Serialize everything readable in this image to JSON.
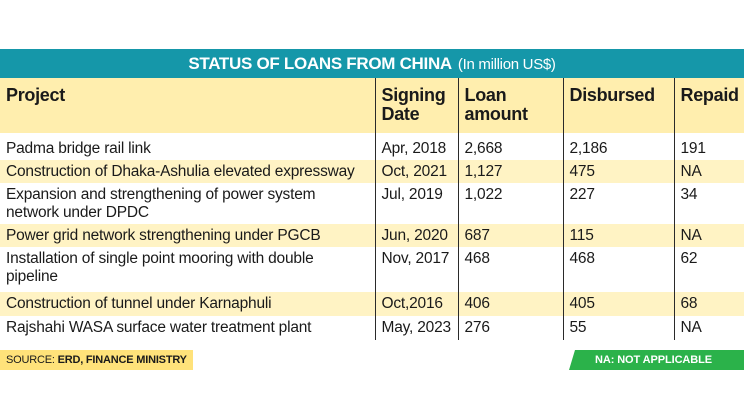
{
  "title": {
    "main": "STATUS OF LOANS FROM CHINA",
    "unit": "(In million US$)"
  },
  "headers": {
    "project": "Project",
    "signing_date": "Signing Date",
    "loan_amount": "Loan amount",
    "disbursed": "Disbursed",
    "repaid": "Repaid"
  },
  "rows": [
    {
      "project": "Padma bridge rail link",
      "date": "Apr, 2018",
      "loan": "2,668",
      "disbursed": "2,186",
      "repaid": "191"
    },
    {
      "project": "Construction of Dhaka-Ashulia elevated expressway",
      "date": "Oct, 2021",
      "loan": "1,127",
      "disbursed": "475",
      "repaid": "NA"
    },
    {
      "project": "Expansion and strengthening of power system network under DPDC",
      "date": "Jul, 2019",
      "loan": "1,022",
      "disbursed": "227",
      "repaid": "34"
    },
    {
      "project": "Power grid network strengthening under PGCB",
      "date": "Jun, 2020",
      "loan": "687",
      "disbursed": "115",
      "repaid": "NA"
    },
    {
      "project": "Installation of single point mooring with double pipeline",
      "date": "Nov, 2017",
      "loan": "468",
      "disbursed": "468",
      "repaid": "62"
    },
    {
      "project": "Construction of tunnel under Karnaphuli",
      "date": "Oct,2016",
      "loan": "406",
      "disbursed": "405",
      "repaid": "68"
    },
    {
      "project": "Rajshahi WASA surface water treatment plant",
      "date": "May, 2023",
      "loan": "276",
      "disbursed": "55",
      "repaid": "NA"
    }
  ],
  "footer": {
    "source_label": "SOURCE: ",
    "source_value": "ERD, FINANCE MINISTRY",
    "na_note": "NA: NOT APPLICABLE"
  },
  "colors": {
    "title_bg": "#1597a9",
    "header_bg": "#ffeeae",
    "stripe_bg": "#fff3c4",
    "source_bg": "#ffe27a",
    "na_bg": "#2bb24a"
  }
}
